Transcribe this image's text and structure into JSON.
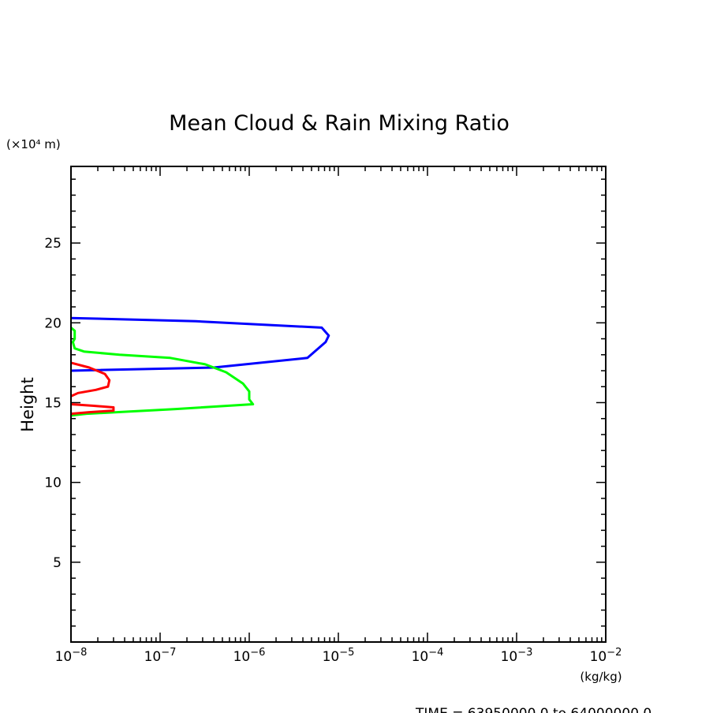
{
  "chart_data": {
    "type": "line",
    "title": "Mean Cloud & Rain Mixing Ratio",
    "ylabel": "Height",
    "y_unit": "(×10⁴ m)",
    "x_unit": "(kg/kg)",
    "xscale": "log",
    "xlim": [
      1e-08,
      0.01
    ],
    "ylim": [
      0,
      29.8
    ],
    "x_ticks": [
      {
        "value": 1e-08,
        "base": "10",
        "exp": "−8"
      },
      {
        "value": 1e-07,
        "base": "10",
        "exp": "−7"
      },
      {
        "value": 1e-06,
        "base": "10",
        "exp": "−6"
      },
      {
        "value": 1e-05,
        "base": "10",
        "exp": "−5"
      },
      {
        "value": 0.0001,
        "base": "10",
        "exp": "−4"
      },
      {
        "value": 0.001,
        "base": "10",
        "exp": "−3"
      },
      {
        "value": 0.01,
        "base": "10",
        "exp": "−2"
      }
    ],
    "y_ticks": [
      {
        "value": 5,
        "label": "5"
      },
      {
        "value": 10,
        "label": "10"
      },
      {
        "value": 15,
        "label": "15"
      },
      {
        "value": 20,
        "label": "20"
      },
      {
        "value": 25,
        "label": "25"
      }
    ],
    "grid": false,
    "series": [
      {
        "color": "#0000ff",
        "points": [
          [
            1e-08,
            20.3
          ],
          [
            2.5e-07,
            20.1
          ],
          [
            6.5e-06,
            19.7
          ],
          [
            7.8e-06,
            19.2
          ],
          [
            7.2e-06,
            18.8
          ],
          [
            4.5e-06,
            17.8
          ],
          [
            4e-07,
            17.2
          ],
          [
            1e-08,
            17.0
          ]
        ]
      },
      {
        "color": "#00ff00",
        "points": [
          [
            1e-08,
            19.7
          ],
          [
            1.1e-08,
            19.5
          ],
          [
            1.1e-08,
            19.0
          ],
          [
            1.05e-08,
            18.8
          ],
          [
            1.1e-08,
            18.4
          ],
          [
            1.4e-08,
            18.2
          ],
          [
            3.5e-08,
            18.0
          ],
          [
            1.3e-07,
            17.8
          ],
          [
            3.2e-07,
            17.4
          ],
          [
            5.5e-07,
            16.9
          ],
          [
            8.5e-07,
            16.2
          ],
          [
            1e-06,
            15.7
          ],
          [
            1e-06,
            15.2
          ],
          [
            1.1e-06,
            14.9
          ],
          [
            1.5e-07,
            14.6
          ],
          [
            1.5e-08,
            14.3
          ],
          [
            1e-08,
            14.2
          ]
        ]
      },
      {
        "color": "#ff0000",
        "points": [
          [
            1e-08,
            17.5
          ],
          [
            1.6e-08,
            17.2
          ],
          [
            2.4e-08,
            16.8
          ],
          [
            2.7e-08,
            16.4
          ],
          [
            2.6e-08,
            16.0
          ],
          [
            1.9e-08,
            15.8
          ],
          [
            1.2e-08,
            15.6
          ],
          [
            1e-08,
            15.4
          ]
        ]
      },
      {
        "color": "#ff0000",
        "points": [
          [
            1e-08,
            14.9
          ],
          [
            1.8e-08,
            14.8
          ],
          [
            3e-08,
            14.7
          ],
          [
            3e-08,
            14.5
          ],
          [
            1.6e-08,
            14.4
          ],
          [
            1e-08,
            14.3
          ]
        ]
      }
    ]
  },
  "footer": {
    "time_text": "TIME = 63950000.0 to 64000000.0"
  }
}
